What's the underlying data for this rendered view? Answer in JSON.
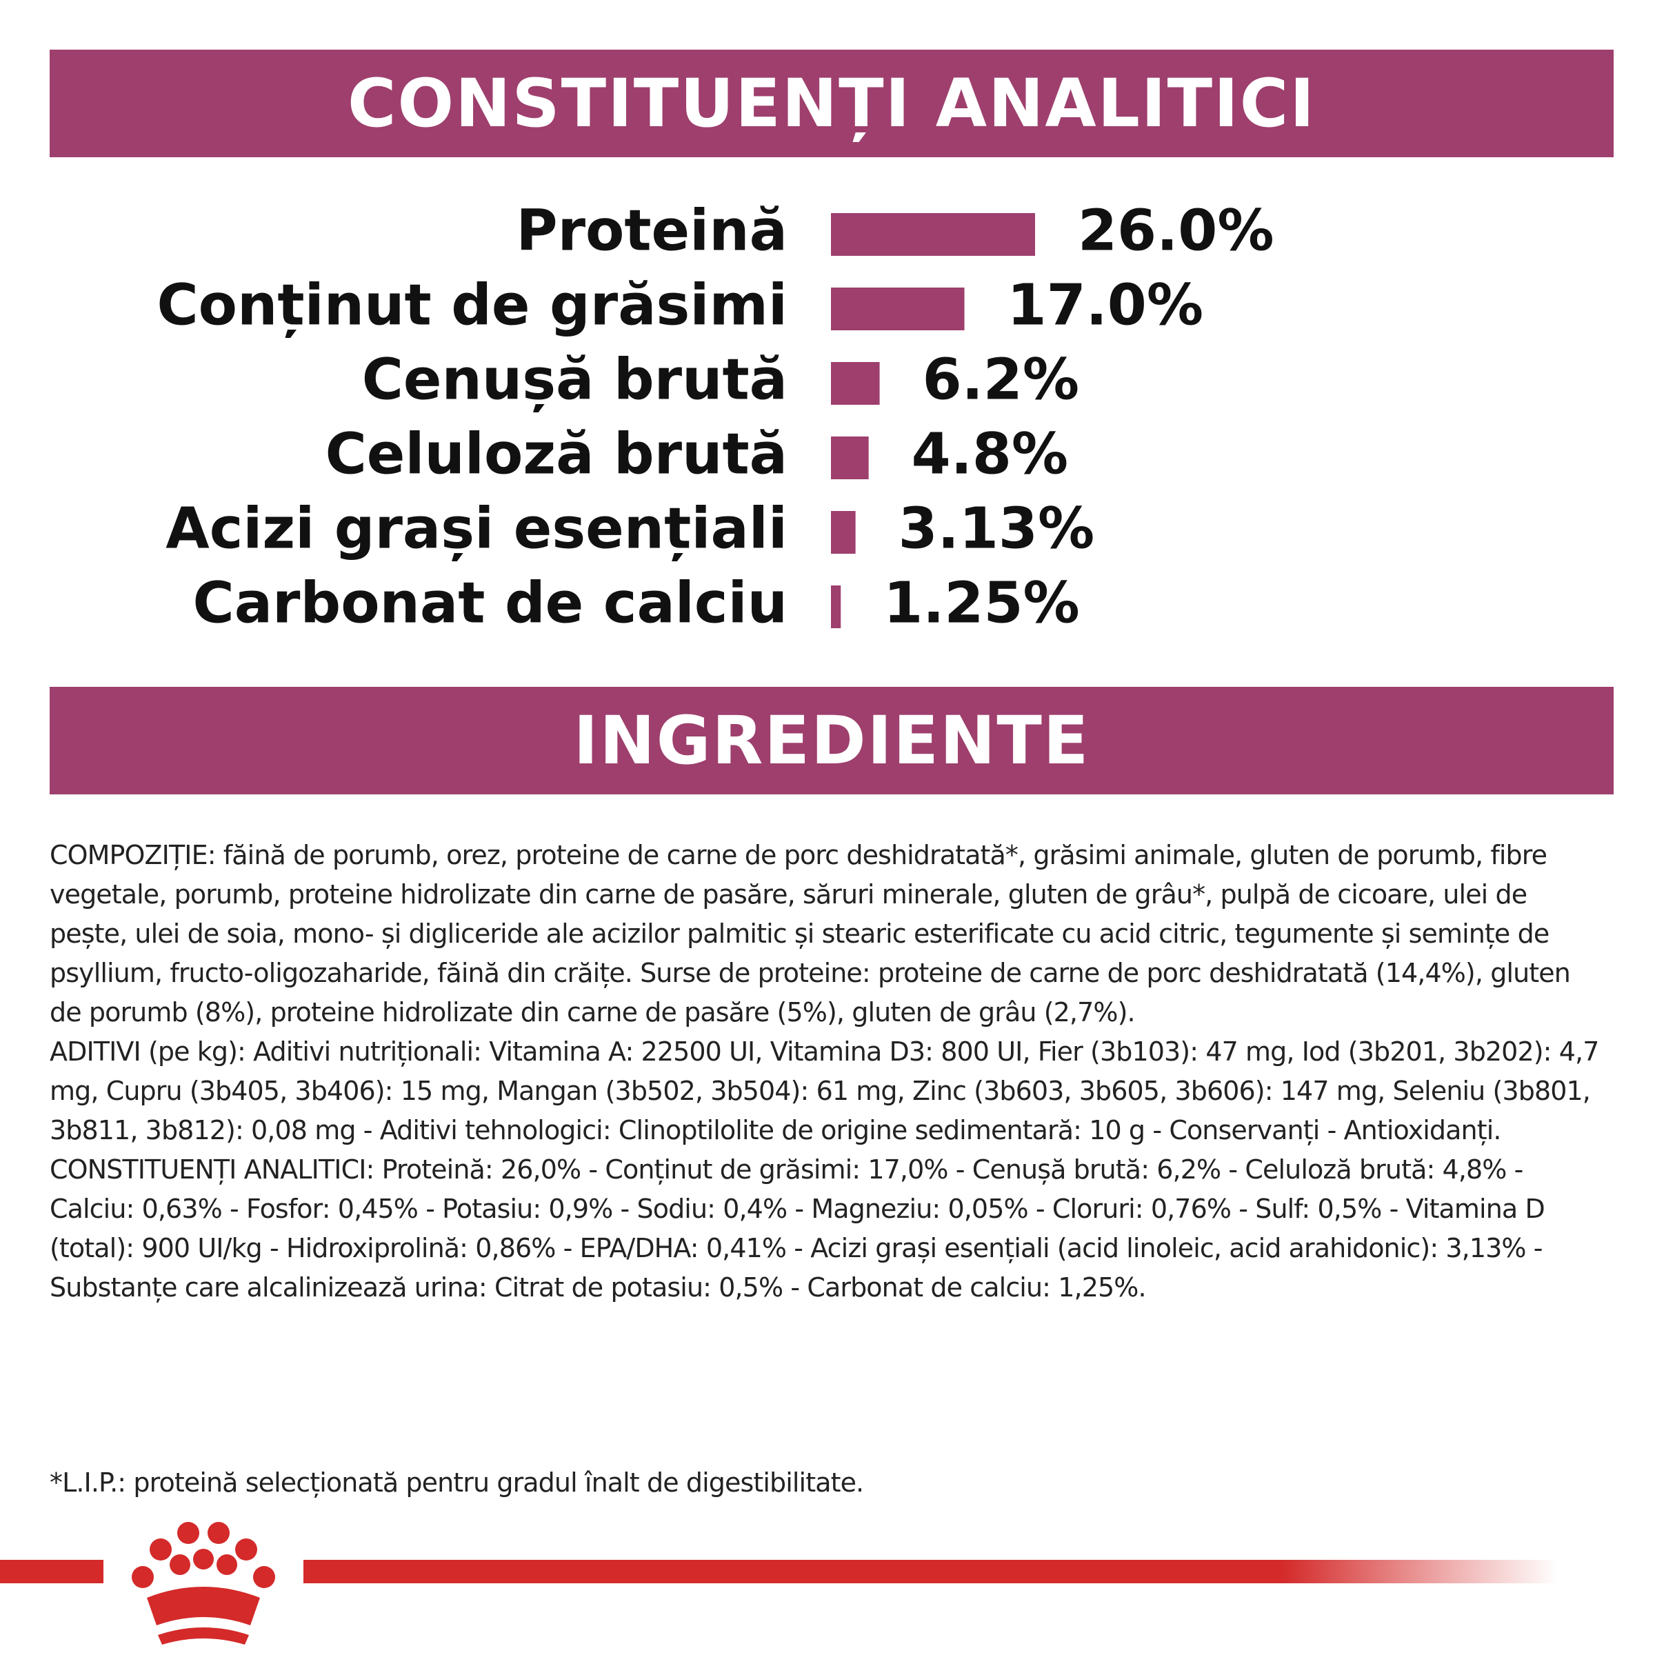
{
  "sections": {
    "analytics_title": "CONSTITUENȚI ANALITICI",
    "ingredients_title": "INGREDIENTE"
  },
  "chart_data": {
    "type": "bar",
    "orientation": "horizontal",
    "title": "",
    "xlabel": "",
    "ylabel": "",
    "categories": [
      "Proteină",
      "Conținut de grăsimi",
      "Cenușă brută",
      "Celuloză brută",
      "Acizi grași esențiali",
      "Carbonat de calciu"
    ],
    "values": [
      26.0,
      17.0,
      6.2,
      4.8,
      3.13,
      1.25
    ],
    "value_labels": [
      "26.0%",
      "17.0%",
      "6.2%",
      "4.8%",
      "3.13%",
      "1.25%"
    ],
    "unit": "%",
    "bar_color": "#9e3f6d",
    "grid": false,
    "legend": "none"
  },
  "ingredients": {
    "paragraphs": [
      "COMPOZIȚIE: făină de porumb, orez, proteine de carne de porc deshidratată*, grăsimi animale, gluten de porumb, fibre vegetale, porumb, proteine hidrolizate din carne de pasăre, săruri minerale, gluten de grâu*, pulpă de cicoare, ulei de pește, ulei de soia, mono- și digliceride ale acizilor palmitic și stearic esterificate cu acid citric, tegumente și semințe de psyllium, fructo-oligozaharide, făină din crăițe. Surse de proteine: proteine de carne de porc deshidratată (14,4%), gluten de porumb (8%), proteine hidrolizate din carne de pasăre (5%), gluten de grâu (2,7%).",
      "ADITIVI (pe kg): Aditivi nutriționali: Vitamina A: 22500 UI, Vitamina D3: 800 UI, Fier (3b103): 47 mg, Iod (3b201, 3b202): 4,7 mg, Cupru (3b405, 3b406): 15 mg, Mangan (3b502, 3b504): 61 mg, Zinc (3b603, 3b605, 3b606): 147 mg, Seleniu (3b801, 3b811, 3b812): 0,08 mg - Aditivi tehnologici: Clinoptilolite de origine sedimentară: 10 g - Conservanți - Antioxidanți.",
      "CONSTITUENȚI ANALITICI: Proteină: 26,0% - Conținut de grăsimi: 17,0% - Cenușă brută: 6,2% - Celuloză brută: 4,8% - Calciu: 0,63% - Fosfor: 0,45% - Potasiu: 0,9% - Sodiu: 0,4% - Magneziu: 0,05% - Cloruri: 0,76% - Sulf: 0,5% - Vitamina D (total): 900 UI/kg - Hidroxiprolină: 0,86% - EPA/DHA: 0,41% - Acizi grași esențiali (acid linoleic, acid arahidonic): 3,13% - Substanțe care alcalinizează urina: Citrat de potasiu: 0,5% - Carbonat de calciu: 1,25%."
    ],
    "footnote": "*L.I.P.: proteină selecționată pentru gradul înalt de digestibilitate."
  },
  "brand": {
    "logo_icon": "crown-icon",
    "accent_color": "#9e3f6d",
    "stripe_color": "#d42a2a"
  }
}
